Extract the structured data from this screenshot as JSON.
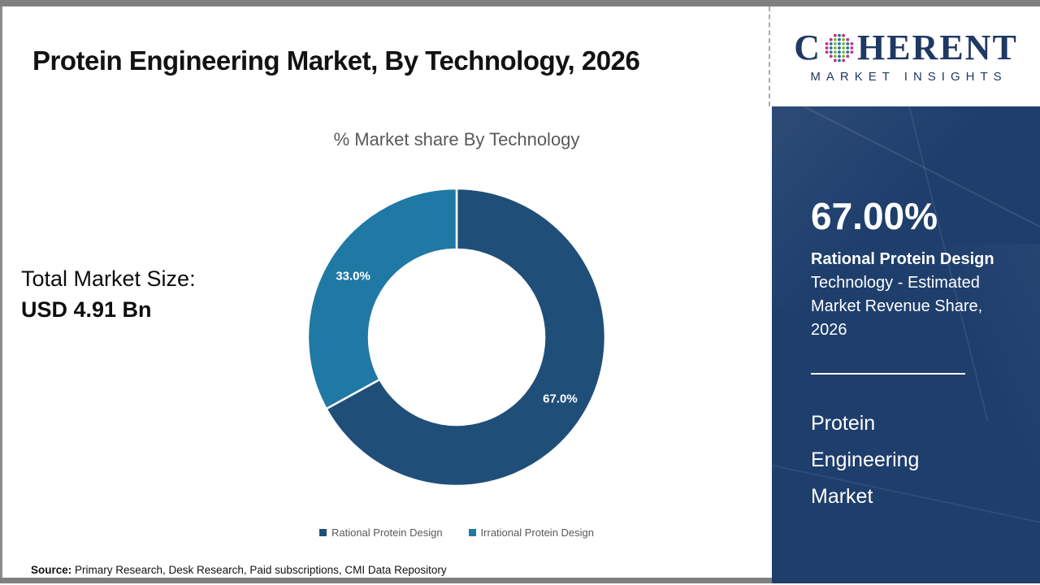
{
  "page": {
    "title": "Protein Engineering Market, By Technology, 2026",
    "source_label": "Source:",
    "source_text": " Primary Research, Desk Research, Paid subscriptions, CMI Data Repository"
  },
  "logo": {
    "name": "Coherent Market Insights",
    "word_start": "C",
    "word_end": "HERENT",
    "subtitle": "MARKET INSIGHTS",
    "navy": "#1F3864",
    "globe_colors": {
      "blue": "#2F6F9F",
      "green": "#7AB648",
      "pink": "#C0307C"
    }
  },
  "left_panel": {
    "total_label": "Total Market Size:",
    "total_value": "USD 4.91 Bn"
  },
  "chart_data": {
    "type": "pie",
    "subtype": "donut",
    "title": "% Market share By Technology",
    "categories": [
      "Rational Protein Design",
      "Irrational Protein Design"
    ],
    "values": [
      67.0,
      33.0
    ],
    "data_labels": [
      "67.0%",
      "33.0%"
    ],
    "colors": [
      "#1F4E79",
      "#2079A4"
    ],
    "start_angle_deg": 0,
    "direction": "clockwise",
    "hole_ratio": 0.59,
    "legend_position": "bottom"
  },
  "sidebar": {
    "stat_value": "67.00%",
    "stat_label_bold": "Rational Protein Design",
    "stat_label_rest": " Technology - Estimated Market Revenue Share, 2026",
    "market_name": "Protein Engineering Market",
    "bg_color": "#1E3E6C"
  }
}
